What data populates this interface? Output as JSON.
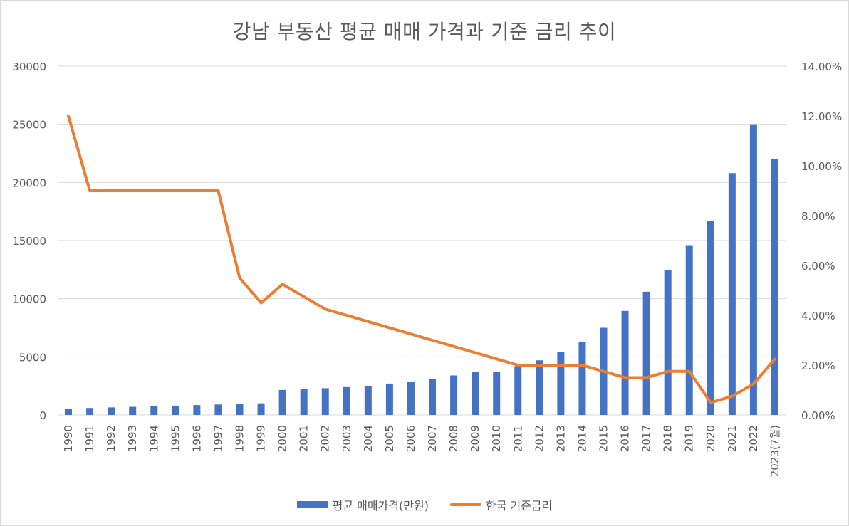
{
  "chart_data": {
    "type": "bar+line",
    "title": "강남 부동산 평균 매매 가격과 기준 금리 추이",
    "categories": [
      "1990",
      "1991",
      "1992",
      "1993",
      "1994",
      "1995",
      "1996",
      "1997",
      "1998",
      "1999",
      "2000",
      "2001",
      "2002",
      "2003",
      "2004",
      "2005",
      "2006",
      "2007",
      "2008",
      "2009",
      "2010",
      "2011",
      "2012",
      "2013",
      "2014",
      "2015",
      "2016",
      "2017",
      "2018",
      "2019",
      "2020",
      "2021",
      "2022",
      "2023(7월)"
    ],
    "series": [
      {
        "name": "평균 매매가격(만원)",
        "type": "bar",
        "axis": "left",
        "color": "#4472c4",
        "values": [
          550,
          600,
          650,
          700,
          750,
          800,
          850,
          900,
          950,
          1000,
          2150,
          2200,
          2300,
          2400,
          2500,
          2700,
          2850,
          3100,
          3400,
          3700,
          3700,
          4200,
          4700,
          5400,
          6300,
          7500,
          8950,
          10600,
          12450,
          14600,
          16700,
          20800,
          25000,
          22000
        ]
      },
      {
        "name": "한국 기준금리",
        "type": "line",
        "axis": "right",
        "color": "#ed7d31",
        "values": [
          12.0,
          9.0,
          9.0,
          9.0,
          9.0,
          9.0,
          9.0,
          9.0,
          5.5,
          4.5,
          5.25,
          4.75,
          4.25,
          4.0,
          3.75,
          3.5,
          3.25,
          3.0,
          2.75,
          2.5,
          2.25,
          2.0,
          2.0,
          2.0,
          2.0,
          1.75,
          1.5,
          1.5,
          1.75,
          1.75,
          0.5,
          0.75,
          1.25,
          2.25
        ]
      }
    ],
    "y_left": {
      "min": 0,
      "max": 30000,
      "ticks": [
        "0",
        "5000",
        "10000",
        "15000",
        "20000",
        "25000",
        "30000"
      ]
    },
    "y_right": {
      "min": 0,
      "max": 14,
      "ticks": [
        "0.00%",
        "2.00%",
        "4.00%",
        "6.00%",
        "8.00%",
        "10.00%",
        "12.00%",
        "14.00%"
      ]
    },
    "grid": true,
    "legend_position": "bottom"
  },
  "legend": {
    "bar_label": "평균 매매가격(만원)",
    "line_label": "한국 기준금리"
  }
}
